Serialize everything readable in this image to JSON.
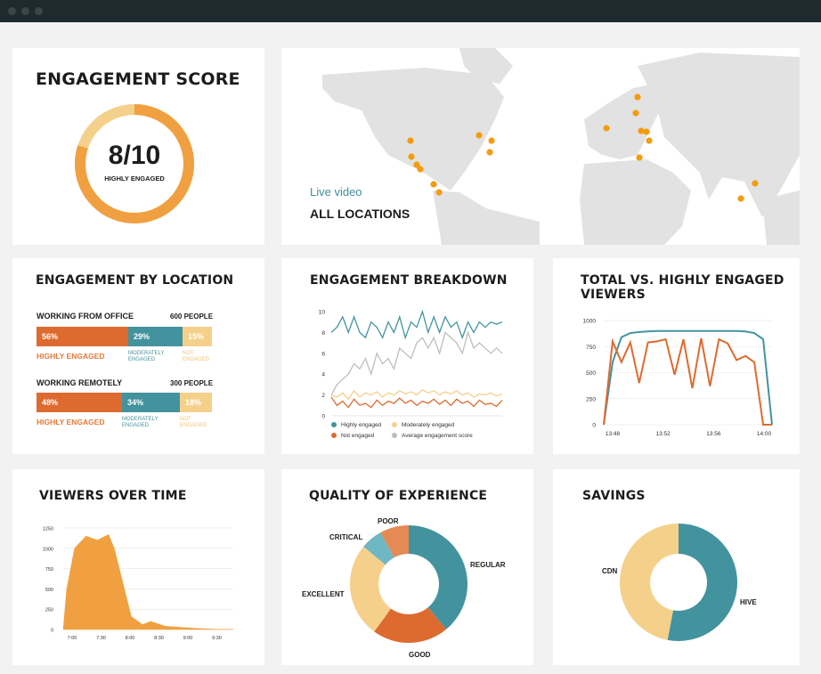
{
  "window": {
    "controls": [
      "close",
      "minimize",
      "maximize"
    ]
  },
  "colors": {
    "orange": "#f0a040",
    "light_orange": "#f5d08a",
    "teal": "#43939e",
    "dark_orange": "#dd6b2f",
    "light_teal": "#6fb7c2",
    "salmon": "#e38a55",
    "gray": "#bdbdbd"
  },
  "engagement_score": {
    "title": "ENGAGEMENT SCORE",
    "score": "8/10",
    "label": "HIGHLY ENGAGED",
    "value": 8,
    "max": 10
  },
  "map": {
    "subtitle": "Live video",
    "title": "ALL LOCATIONS",
    "markers_count": 18
  },
  "by_location": {
    "title": "ENGAGEMENT BY LOCATION",
    "groups": [
      {
        "name": "WORKING FROM OFFICE",
        "people": "600 PEOPLE",
        "segments": [
          {
            "pct": "56%",
            "value": 56,
            "label": "HIGHLY ENGAGED"
          },
          {
            "pct": "29%",
            "value": 29,
            "label": "MODERATELY\nENGAGED"
          },
          {
            "pct": "15%",
            "value": 15,
            "label": "NOT\nENGAGED"
          }
        ]
      },
      {
        "name": "WORKING REMOTELY",
        "people": "300 PEOPLE",
        "segments": [
          {
            "pct": "48%",
            "value": 48,
            "label": "HIGHLY ENGAGED"
          },
          {
            "pct": "34%",
            "value": 34,
            "label": "MODERATELY\nENGAGED"
          },
          {
            "pct": "18%",
            "value": 18,
            "label": "NOT\nENGAGED"
          }
        ]
      }
    ]
  },
  "breakdown": {
    "title": "ENGAGEMENT BREAKDOWN",
    "legend": [
      "Highly engaged",
      "Moderately engaged",
      "Not engaged",
      "Average engagement score"
    ]
  },
  "total_vs_high": {
    "title_line1": "TOTAL VS. HIGHLY ENGAGED",
    "title_line2": "VIEWERS"
  },
  "viewers": {
    "title": "VIEWERS OVER TIME"
  },
  "quality": {
    "title": "QUALITY OF EXPERIENCE",
    "labels": {
      "poor": "POOR",
      "critical": "CRITICAL",
      "regular": "REGULAR",
      "excellent": "EXCELLENT",
      "good": "GOOD"
    }
  },
  "savings": {
    "title": "SAVINGS",
    "labels": {
      "cdn": "CDN",
      "hive": "HIVE"
    }
  },
  "chart_data": [
    {
      "type": "line",
      "title": "ENGAGEMENT BREAKDOWN",
      "ylim": [
        0,
        10
      ],
      "yticks": [
        "0",
        "2",
        "4",
        "6",
        "8",
        "10"
      ],
      "series": [
        {
          "name": "Highly engaged",
          "values": [
            8,
            8.5,
            9.5,
            8,
            9.5,
            8,
            7.5,
            9,
            8.5,
            7.5,
            9,
            8,
            9.5,
            7.5,
            9,
            8.5,
            10,
            8,
            9.5,
            8,
            9.5,
            8.5,
            9,
            7.5,
            9,
            8,
            9,
            8.5,
            9,
            8.8,
            9
          ]
        },
        {
          "name": "Moderately engaged",
          "values": [
            2,
            1.8,
            2.2,
            1.6,
            2.4,
            1.8,
            2.2,
            2,
            2.3,
            1.8,
            2.2,
            2,
            2.4,
            2.1,
            2.3,
            2,
            2.5,
            2.2,
            2.4,
            2,
            2.3,
            2.1,
            2.4,
            2,
            2.2,
            1.8,
            2.1,
            2,
            2.2,
            1.9,
            2.1
          ]
        },
        {
          "name": "Not engaged",
          "values": [
            1.8,
            1,
            1.4,
            0.8,
            1.6,
            1,
            1.2,
            0.8,
            1.5,
            1,
            1.4,
            1.2,
            1.7,
            1.2,
            1.5,
            1,
            1.4,
            1.2,
            1.6,
            1.1,
            1.5,
            1,
            1.6,
            1.2,
            1.4,
            0.9,
            1.5,
            1.1,
            1.2,
            0.9,
            1.5
          ]
        },
        {
          "name": "Average engagement score",
          "values": [
            2,
            3,
            3.5,
            4,
            5,
            4.5,
            5.5,
            4,
            6,
            5,
            5.5,
            4.5,
            6.5,
            6,
            5.5,
            7,
            7.5,
            6.5,
            7.5,
            6,
            8,
            7.5,
            7,
            6,
            8,
            6.5,
            7,
            6.5,
            6,
            6.5,
            6
          ]
        }
      ]
    },
    {
      "type": "line",
      "title": "TOTAL VS. HIGHLY ENGAGED VIEWERS",
      "ylim": [
        0,
        1000
      ],
      "yticks": [
        "0",
        "250",
        "500",
        "750",
        "1000"
      ],
      "xticks": [
        "13:48",
        "13:52",
        "13:56",
        "14:00"
      ],
      "series": [
        {
          "name": "Total",
          "values": [
            0,
            600,
            840,
            880,
            890,
            895,
            900,
            900,
            900,
            900,
            900,
            900,
            900,
            900,
            900,
            900,
            895,
            880,
            820,
            0
          ]
        },
        {
          "name": "Highly engaged",
          "values": [
            0,
            800,
            600,
            790,
            400,
            790,
            800,
            820,
            480,
            820,
            350,
            830,
            370,
            820,
            780,
            620,
            660,
            600,
            0,
            0
          ]
        }
      ]
    },
    {
      "type": "area",
      "title": "VIEWERS OVER TIME",
      "ylim": [
        0,
        1250
      ],
      "yticks": [
        "0",
        "250",
        "500",
        "750",
        "1000",
        "1250"
      ],
      "xticks": [
        "7:00",
        "7:30",
        "8:00",
        "8:30",
        "9:00",
        "9:30"
      ],
      "x": [
        0,
        3,
        10,
        20,
        30,
        40,
        45,
        60,
        70,
        77,
        90,
        110,
        130,
        150
      ],
      "values": [
        0,
        490,
        1000,
        1150,
        1100,
        1170,
        1000,
        160,
        60,
        100,
        40,
        20,
        5,
        0
      ]
    },
    {
      "type": "pie",
      "title": "QUALITY OF EXPERIENCE",
      "categories": [
        "REGULAR",
        "GOOD",
        "EXCELLENT",
        "CRITICAL",
        "POOR"
      ],
      "values": [
        39,
        21,
        26,
        6,
        8
      ]
    },
    {
      "type": "pie",
      "title": "SAVINGS",
      "categories": [
        "HIVE",
        "CDN"
      ],
      "values": [
        53,
        47
      ]
    }
  ]
}
